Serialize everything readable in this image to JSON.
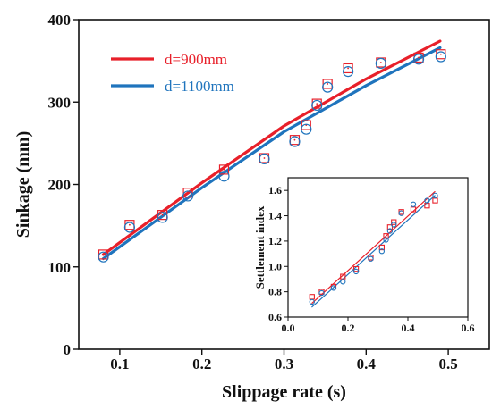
{
  "chart_data": [
    {
      "type": "scatter",
      "xlabel": "Slippage rate (s)",
      "ylabel": "Sinkage (mm)",
      "xlim": [
        0.05,
        0.55
      ],
      "ylim": [
        0,
        400
      ],
      "xticks": [
        "0.1",
        "0.2",
        "0.3",
        "0.4",
        "0.5"
      ],
      "xtick_values": [
        0.1,
        0.2,
        0.3,
        0.4,
        0.5
      ],
      "yticks": [
        "0",
        "100",
        "200",
        "300",
        "400"
      ],
      "ytick_values": [
        0,
        100,
        200,
        300,
        400
      ],
      "legend_position": "top-left",
      "series": [
        {
          "name": "d=900mm",
          "color": "#e8202a",
          "marker": "square",
          "x": [
            0.08,
            0.112,
            0.152,
            0.183,
            0.227,
            0.276,
            0.313,
            0.327,
            0.34,
            0.353,
            0.378,
            0.418,
            0.464,
            0.491
          ],
          "y": [
            115,
            151,
            163,
            190,
            218,
            232,
            254,
            272,
            298,
            322,
            341,
            348,
            354,
            358
          ]
        },
        {
          "name": "d=1100mm",
          "color": "#1f74bd",
          "marker": "circle",
          "x": [
            0.08,
            0.112,
            0.152,
            0.183,
            0.227,
            0.276,
            0.313,
            0.327,
            0.34,
            0.353,
            0.378,
            0.418,
            0.464,
            0.491
          ],
          "y": [
            112,
            148,
            160,
            186,
            210,
            231,
            252,
            267,
            296,
            318,
            337,
            347,
            352,
            355
          ]
        }
      ],
      "fit_lines": [
        {
          "series": "d=900mm",
          "color": "#e8202a",
          "x": [
            0.08,
            0.2,
            0.3,
            0.4,
            0.49
          ],
          "y": [
            115,
            202,
            271,
            328,
            374
          ]
        },
        {
          "series": "d=1100mm",
          "color": "#1f74bd",
          "x": [
            0.08,
            0.2,
            0.3,
            0.4,
            0.49
          ],
          "y": [
            110,
            196,
            264,
            320,
            366
          ]
        }
      ]
    },
    {
      "type": "scatter",
      "ylabel": "Settlement index",
      "xlabel": "",
      "xlim": [
        0.0,
        0.6
      ],
      "ylim": [
        0.6,
        1.7
      ],
      "xticks": [
        "0.0",
        "0.2",
        "0.4",
        "0.6"
      ],
      "xtick_values": [
        0.0,
        0.2,
        0.4,
        0.6
      ],
      "yticks": [
        "0.6",
        "0.8",
        "1.0",
        "1.2",
        "1.4",
        "1.6"
      ],
      "ytick_values": [
        0.6,
        0.8,
        1.0,
        1.2,
        1.4,
        1.6
      ],
      "series": [
        {
          "color": "#e8202a",
          "marker": "square",
          "x": [
            0.08,
            0.112,
            0.152,
            0.183,
            0.227,
            0.276,
            0.313,
            0.327,
            0.34,
            0.353,
            0.378,
            0.418,
            0.464,
            0.491
          ],
          "y": [
            0.76,
            0.8,
            0.84,
            0.92,
            0.98,
            1.07,
            1.15,
            1.24,
            1.31,
            1.35,
            1.43,
            1.45,
            1.48,
            1.52
          ]
        },
        {
          "color": "#1f74bd",
          "marker": "circle",
          "x": [
            0.08,
            0.112,
            0.152,
            0.183,
            0.227,
            0.276,
            0.313,
            0.327,
            0.34,
            0.353,
            0.378,
            0.418,
            0.464,
            0.491
          ],
          "y": [
            0.72,
            0.79,
            0.83,
            0.88,
            0.96,
            1.06,
            1.12,
            1.21,
            1.28,
            1.33,
            1.42,
            1.49,
            1.52,
            1.56
          ]
        }
      ],
      "fit_lines": [
        {
          "color": "#e8202a",
          "x": [
            0.08,
            0.49
          ],
          "y": [
            0.71,
            1.59
          ]
        },
        {
          "color": "#1f74bd",
          "x": [
            0.08,
            0.49
          ],
          "y": [
            0.68,
            1.56
          ]
        }
      ]
    }
  ]
}
